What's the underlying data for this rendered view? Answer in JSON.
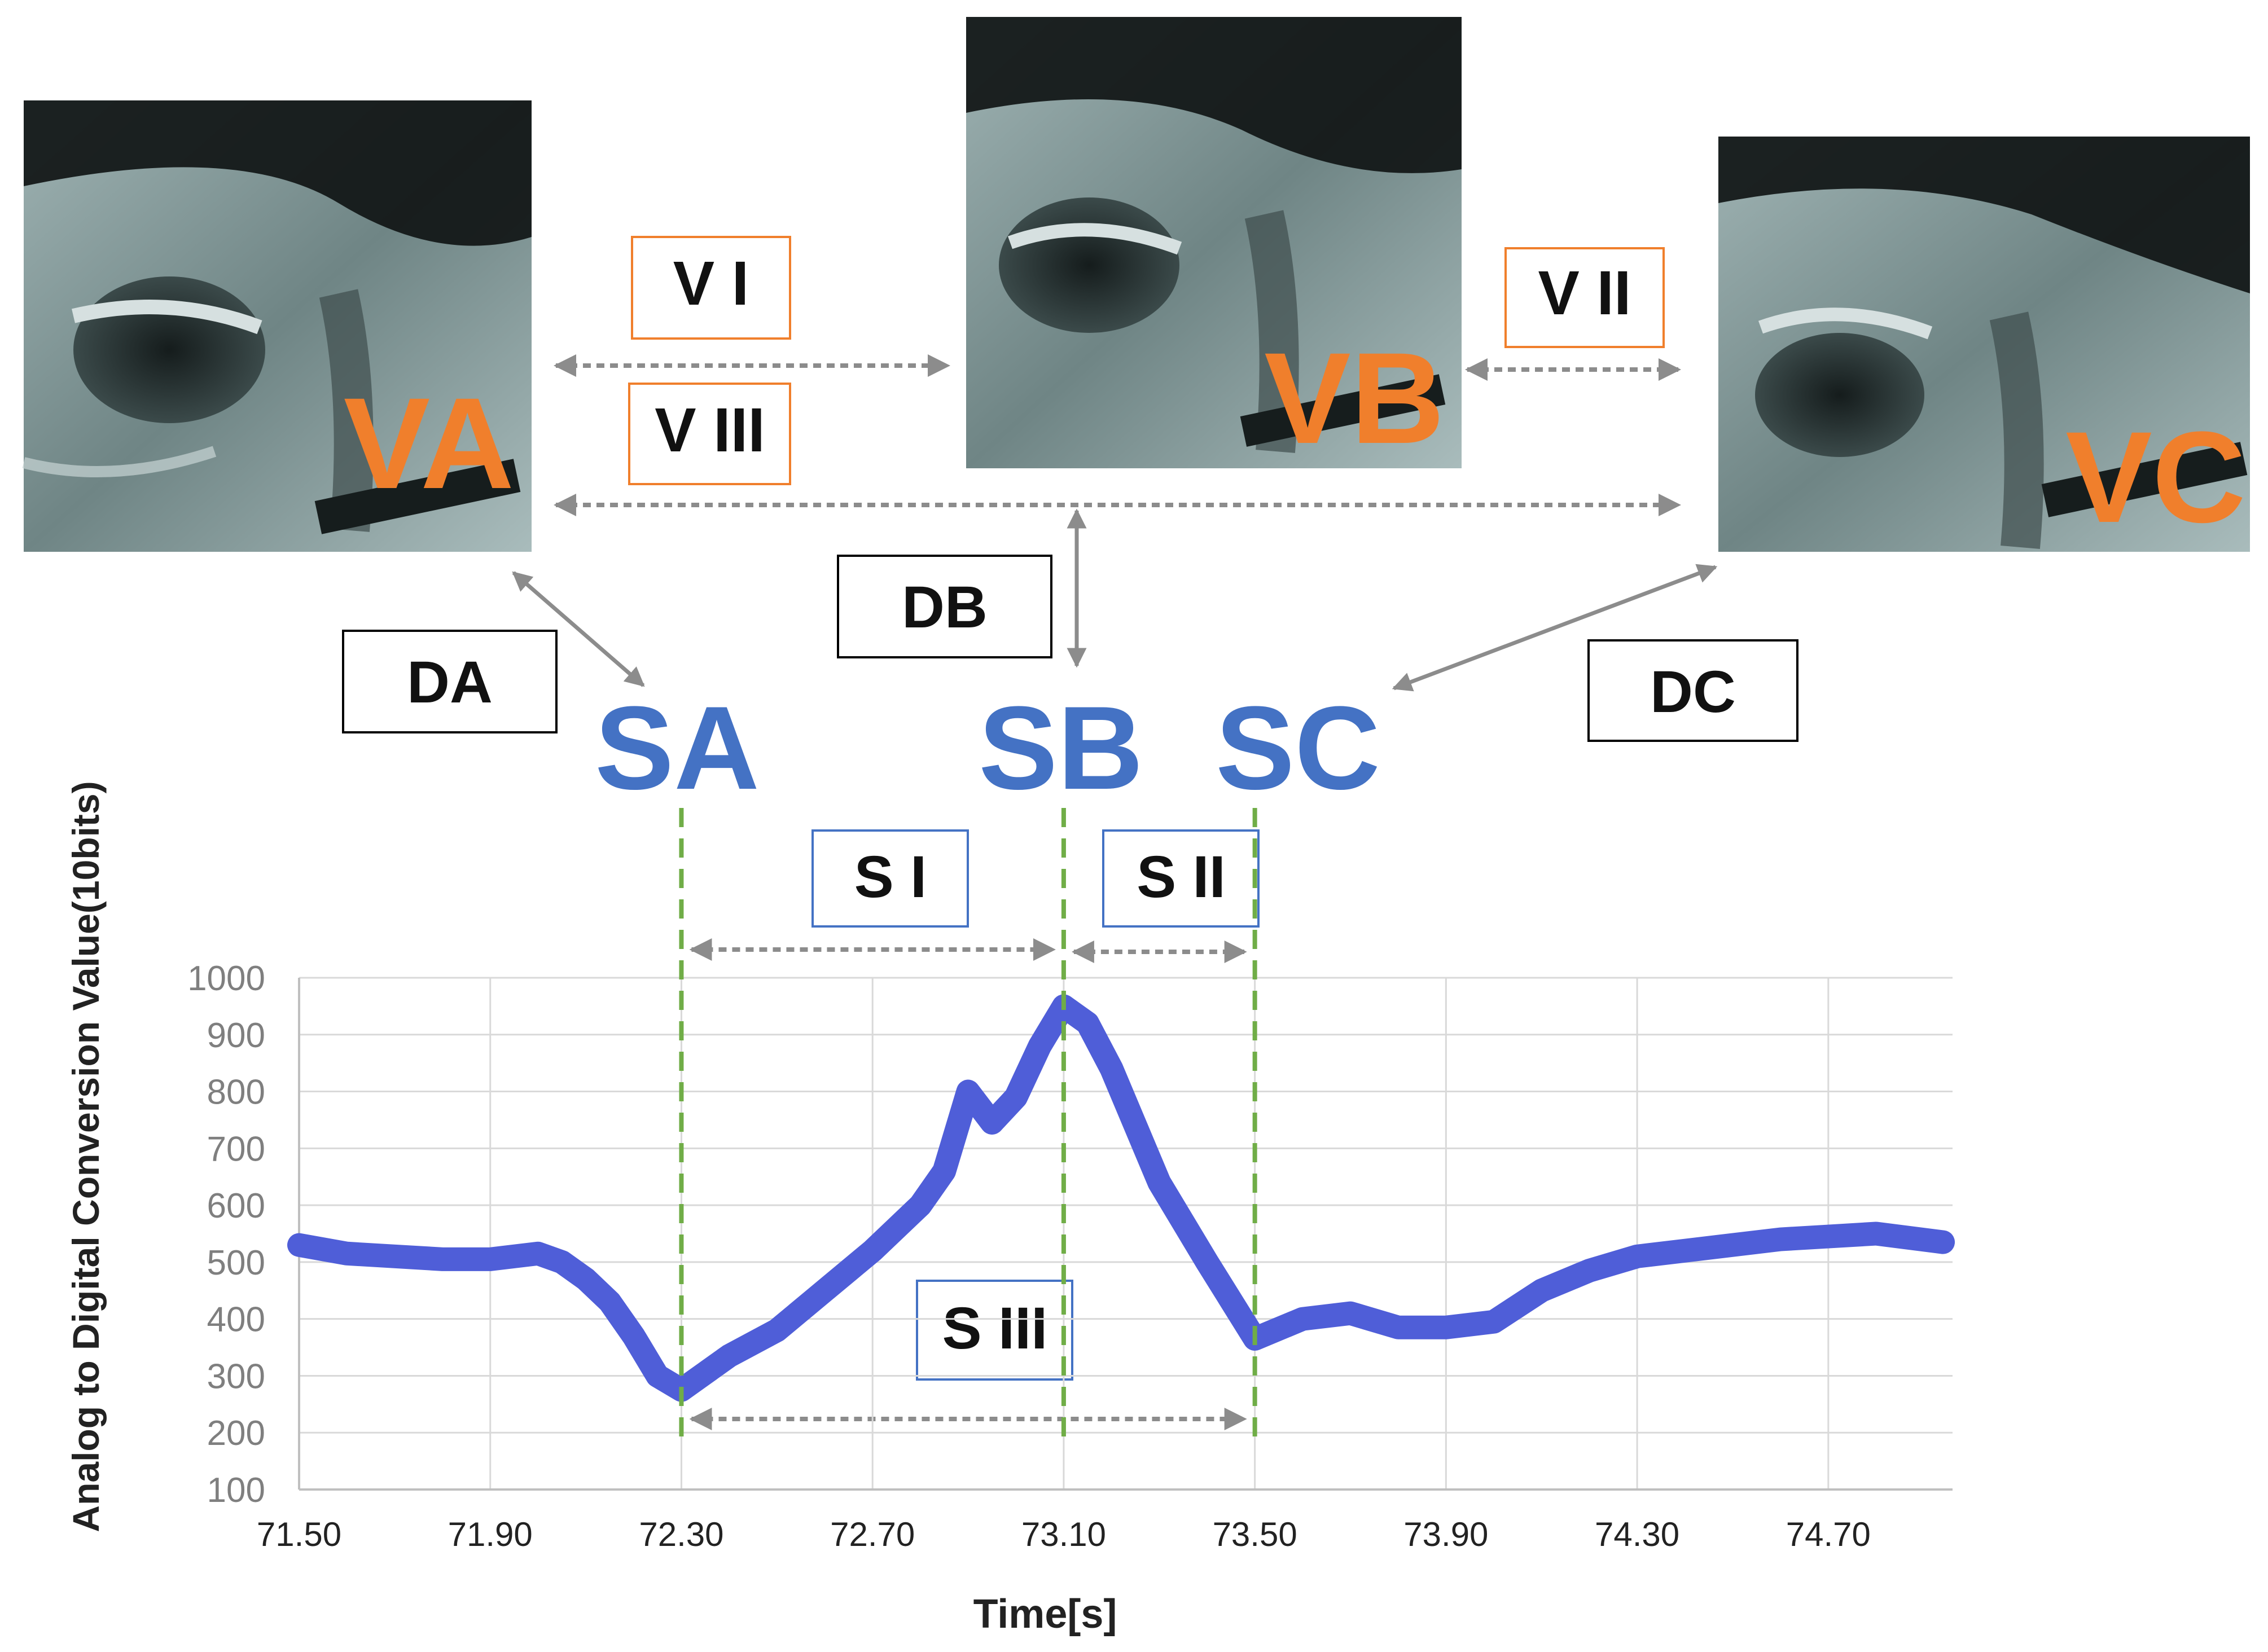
{
  "images": [
    {
      "id": "VA",
      "label": "VA",
      "description": "lateral videofluoroscopy frame A"
    },
    {
      "id": "VB",
      "label": "VB",
      "description": "lateral videofluoroscopy frame B"
    },
    {
      "id": "VC",
      "label": "VC",
      "description": "lateral videofluoroscopy frame C"
    }
  ],
  "video_intervals": {
    "v1": "V I",
    "v2": "V II",
    "v3": "V III"
  },
  "delays": {
    "da": "DA",
    "db": "DB",
    "dc": "DC"
  },
  "sensor_points": {
    "sa": "SA",
    "sb": "SB",
    "sc": "SC"
  },
  "sensor_intervals": {
    "s1": "S I",
    "s2": "S II",
    "s3": "S III"
  },
  "colors": {
    "image_label": "#f07f2c",
    "sensor_label": "#4472c4",
    "signal_line": "#4f5ed8",
    "marker_line": "#70ad47",
    "arrow": "#8c8c8c",
    "video_box": "#f07f2c",
    "sensor_box": "#4472c4",
    "delay_box": "#000000"
  },
  "chart_data": {
    "type": "line",
    "title": "",
    "xlabel": "Time[s]",
    "ylabel": "Analog to Digital Conversion Value(10bits)",
    "xlim": [
      71.5,
      74.96
    ],
    "ylim": [
      100,
      1000
    ],
    "x_ticks": [
      "71.50",
      "71.90",
      "72.30",
      "72.70",
      "73.10",
      "73.50",
      "73.90",
      "74.30",
      "74.70"
    ],
    "y_ticks": [
      "1000",
      "900",
      "800",
      "700",
      "600",
      "500",
      "400",
      "300",
      "200",
      "100"
    ],
    "grid": true,
    "markers": [
      {
        "name": "SA",
        "x": 72.3
      },
      {
        "name": "SB",
        "x": 73.1
      },
      {
        "name": "SC",
        "x": 73.5
      }
    ],
    "series": [
      {
        "name": "",
        "x": [
          71.5,
          71.6,
          71.7,
          71.8,
          71.9,
          72.0,
          72.05,
          72.1,
          72.15,
          72.2,
          72.25,
          72.3,
          72.35,
          72.4,
          72.5,
          72.6,
          72.7,
          72.8,
          72.85,
          72.9,
          72.95,
          73.0,
          73.05,
          73.1,
          73.15,
          73.2,
          73.25,
          73.3,
          73.4,
          73.5,
          73.6,
          73.7,
          73.8,
          73.9,
          74.0,
          74.1,
          74.2,
          74.3,
          74.4,
          74.5,
          74.6,
          74.7,
          74.8,
          74.94
        ],
        "values": [
          530,
          515,
          510,
          505,
          505,
          515,
          500,
          470,
          430,
          370,
          300,
          275,
          305,
          335,
          380,
          450,
          520,
          600,
          660,
          800,
          745,
          790,
          880,
          950,
          920,
          840,
          740,
          640,
          500,
          365,
          400,
          410,
          385,
          385,
          395,
          450,
          485,
          510,
          520,
          530,
          540,
          545,
          550,
          535
        ]
      }
    ]
  }
}
